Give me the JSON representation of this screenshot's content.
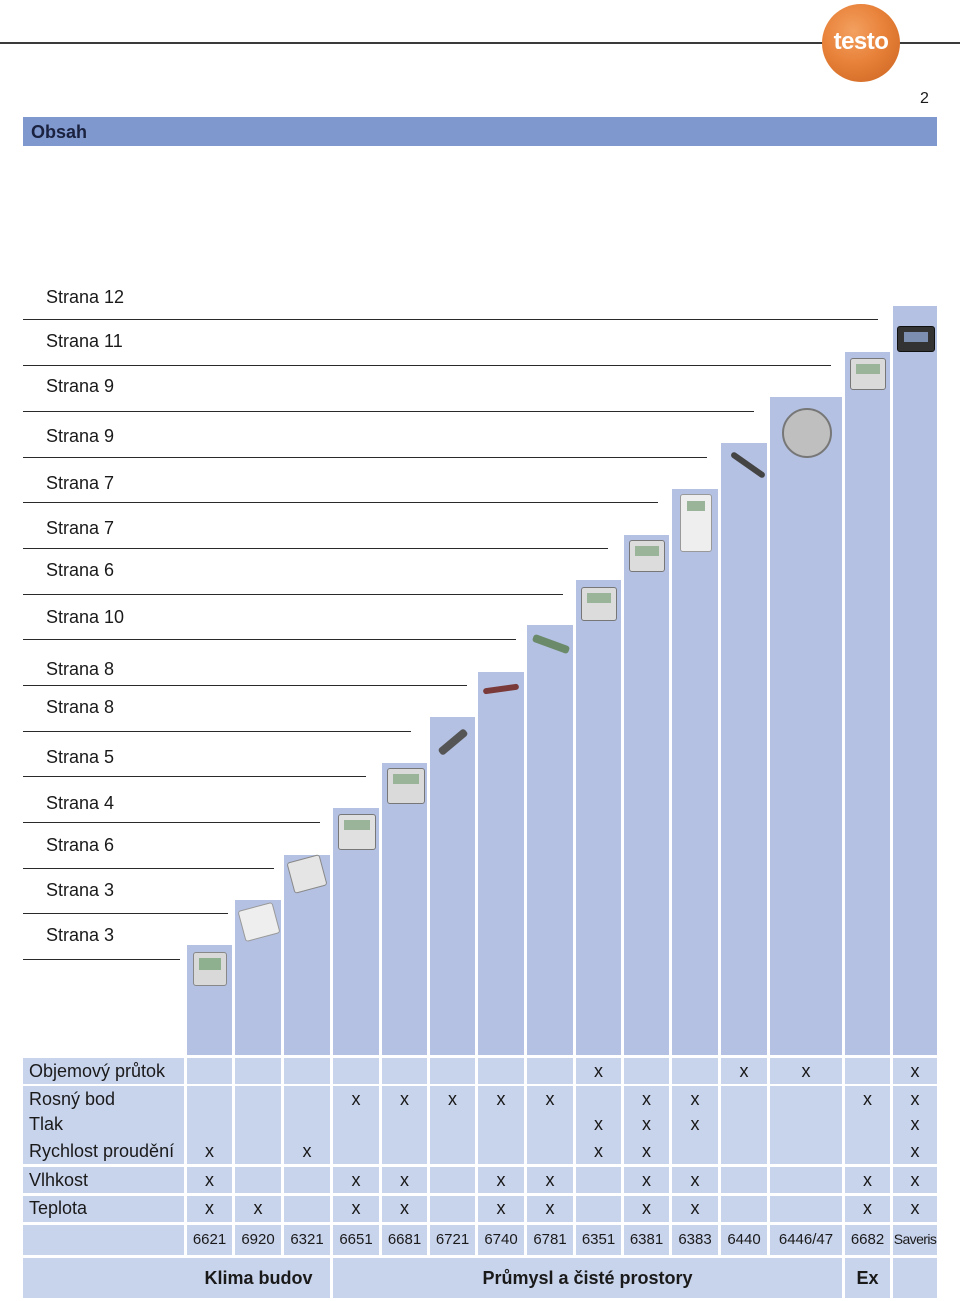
{
  "header": {
    "logo_text": "testo",
    "page_number": "2",
    "section_title": "Obsah"
  },
  "pages": [
    "Strana 12",
    "Strana 11",
    "Strana 9",
    "Strana 9",
    "Strana 7",
    "Strana 7",
    "Strana 6",
    "Strana 10",
    "Strana 8",
    "Strana 8",
    "Strana 5",
    "Strana 4",
    "Strana 6",
    "Strana 3",
    "Strana 3"
  ],
  "table": {
    "rows": [
      {
        "label": "Objemový průtok",
        "marks": [
          "",
          "",
          "",
          "",
          "",
          "",
          "",
          "",
          "x",
          "",
          "",
          "x",
          "x",
          "",
          "x"
        ]
      },
      {
        "label": "Rosný bod",
        "marks": [
          "",
          "",
          "",
          "x",
          "x",
          "x",
          "x",
          "x",
          "",
          "x",
          "x",
          "",
          "",
          "x",
          "x"
        ]
      },
      {
        "label": "Tlak",
        "marks": [
          "",
          "",
          "",
          "",
          "",
          "",
          "",
          "",
          "x",
          "x",
          "x",
          "",
          "",
          "",
          "x"
        ]
      },
      {
        "label": "Rychlost proudění",
        "marks": [
          "x",
          "",
          "x",
          "",
          "",
          "",
          "",
          "",
          "x",
          "x",
          "",
          "",
          "",
          "",
          "x"
        ]
      },
      {
        "label": "Vlhkost",
        "marks": [
          "x",
          "",
          "",
          "x",
          "x",
          "",
          "x",
          "x",
          "",
          "x",
          "x",
          "",
          "",
          "x",
          "x"
        ]
      },
      {
        "label": "Teplota",
        "marks": [
          "x",
          "x",
          "",
          "x",
          "x",
          "",
          "x",
          "x",
          "",
          "x",
          "x",
          "",
          "",
          "x",
          "x"
        ]
      }
    ],
    "models": [
      "6621",
      "6920",
      "6321",
      "6651",
      "6681",
      "6721",
      "6740",
      "6781",
      "6351",
      "6381",
      "6383",
      "6440",
      "6446/47",
      "6682",
      "Saveris"
    ],
    "groups": [
      "Klima budov",
      "Průmysl a čisté prostory",
      "Ex"
    ]
  },
  "devices": [
    "display-transmitter-icon",
    "room-sensor-icon",
    "duct-sensor-icon",
    "transmitter-icon",
    "transmitter-icon",
    "probe-icon",
    "probe-icon",
    "probe-icon",
    "transmitter-icon",
    "transmitter-icon",
    "display-transmitter-icon",
    "insertion-probe-icon",
    "flow-meter-icon",
    "ex-transmitter-icon",
    "saveris-base-icon"
  ]
}
